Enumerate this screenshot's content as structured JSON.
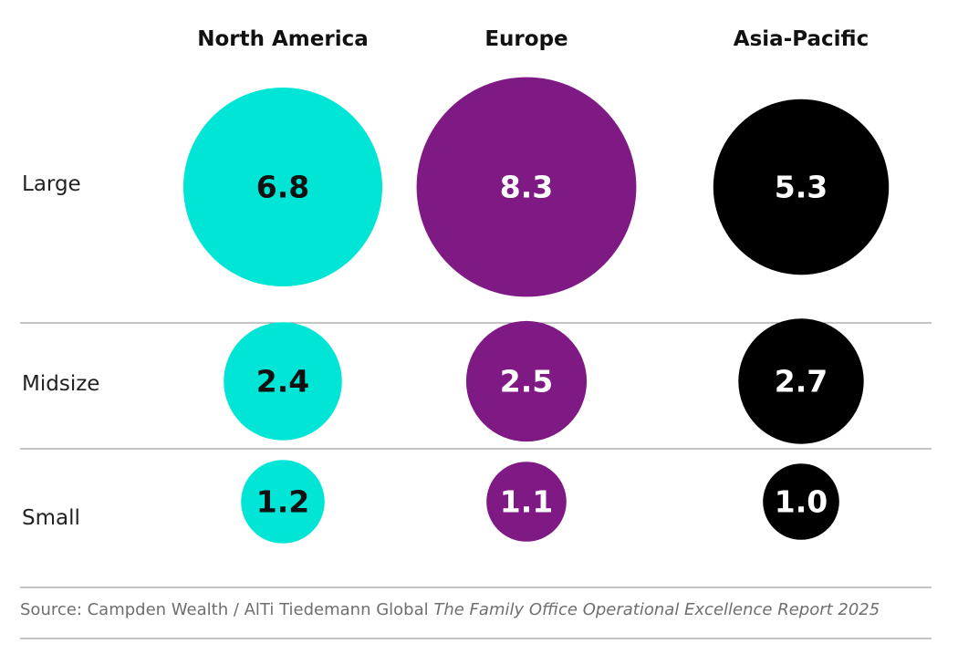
{
  "chart_data": {
    "type": "bubble-matrix",
    "columns": [
      "North America",
      "Europe",
      "Asia-Pacific"
    ],
    "rows": [
      "Large",
      "Midsize",
      "Small"
    ],
    "values": [
      [
        6.8,
        8.3,
        5.3
      ],
      [
        2.4,
        2.5,
        2.7
      ],
      [
        1.2,
        1.1,
        1.0
      ]
    ],
    "value_labels": [
      [
        "6.8",
        "8.3",
        "5.3"
      ],
      [
        "2.4",
        "2.5",
        "2.7"
      ],
      [
        "1.2",
        "1.1",
        "1.0"
      ]
    ],
    "colors": [
      "#00e5d6",
      "#7f1a85",
      "#000000"
    ],
    "label_colors": [
      "#111111",
      "#ffffff",
      "#ffffff"
    ]
  },
  "source": {
    "prefix": "Source: Campden Wealth / AlTi Tiedemann Global ",
    "title": "The Family Office Operational Excellence Report 2025"
  }
}
